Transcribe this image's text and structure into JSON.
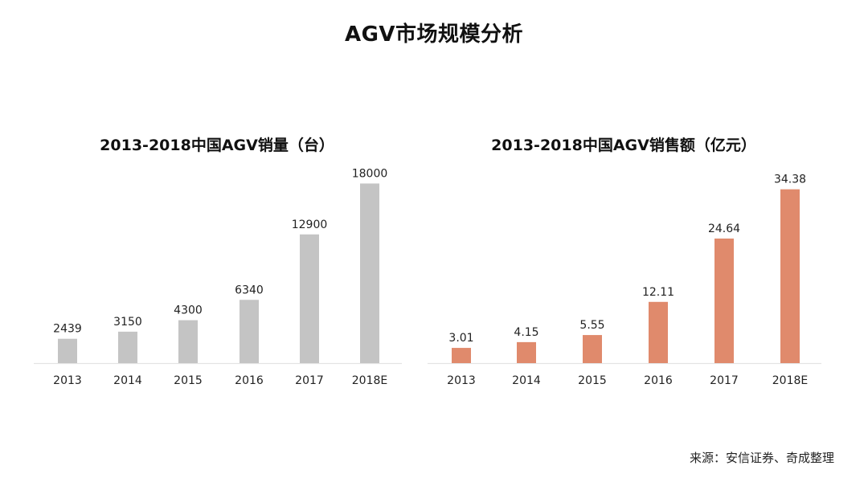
{
  "title": "AGV市场规模分析",
  "source": "来源：安信证券、奇成整理",
  "chart_data": [
    {
      "type": "bar",
      "title": "2013-2018中国AGV销量（台）",
      "categories": [
        "2013",
        "2014",
        "2015",
        "2016",
        "2017",
        "2018E"
      ],
      "values": [
        2439,
        3150,
        4300,
        6340,
        12900,
        18000
      ],
      "value_labels": [
        "2439",
        "3150",
        "4300",
        "6340",
        "12900",
        "18000"
      ],
      "ylim": [
        0,
        19000
      ],
      "grid": false,
      "bar_color": "#c4c4c4"
    },
    {
      "type": "bar",
      "title": "2013-2018中国AGV销售额（亿元）",
      "categories": [
        "2013",
        "2014",
        "2015",
        "2016",
        "2017",
        "2018E"
      ],
      "values": [
        3.01,
        4.15,
        5.55,
        12.11,
        24.64,
        34.38
      ],
      "value_labels": [
        "3.01",
        "4.15",
        "5.55",
        "12.11",
        "24.64",
        "34.38"
      ],
      "ylim": [
        0,
        37.5
      ],
      "grid": false,
      "bar_color": "#e08a6c"
    }
  ]
}
